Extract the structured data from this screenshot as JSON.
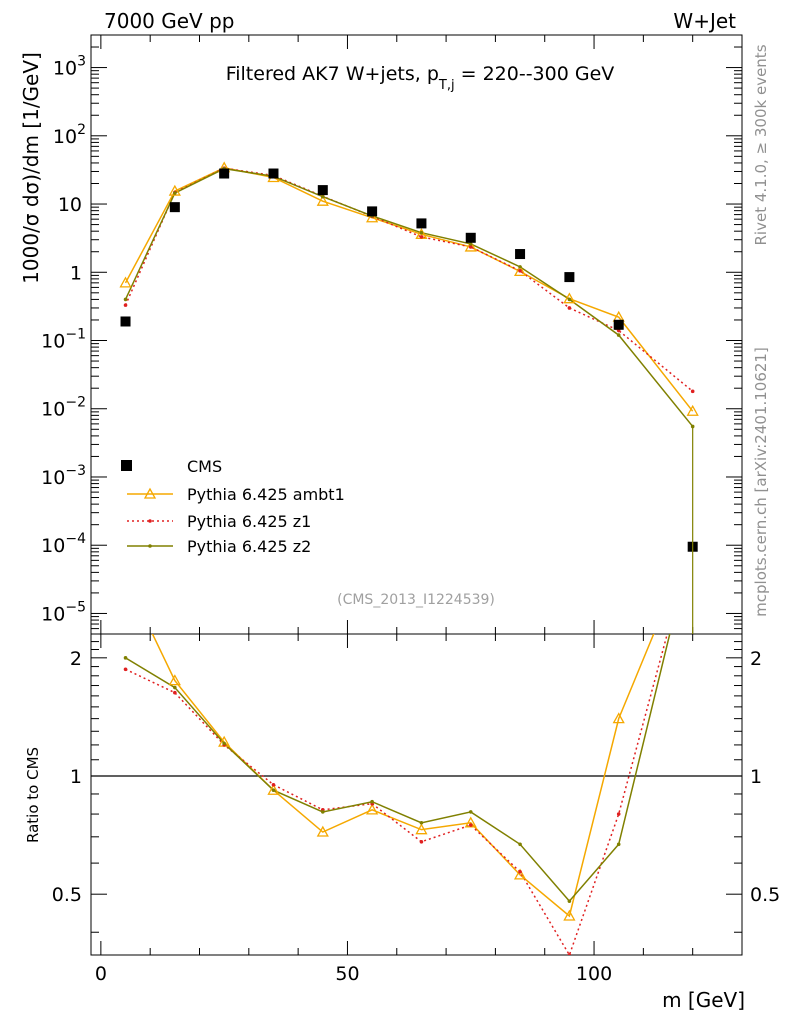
{
  "header": {
    "left": "7000 GeV pp",
    "right": "W+Jet"
  },
  "side_labels": {
    "rivet": "Rivet 4.1.0, ≥ 300k events",
    "site": "mcplots.cern.ch [arXiv:2401.10621]"
  },
  "chart_data": {
    "type": "line",
    "title_main": "Filtered AK7 W+jets, p",
    "title_sub": "T,j",
    "title_tail": " = 220--300 GeV",
    "analysis_tag": "(CMS_2013_I1224539)",
    "ylabel": "1000/σ  dσ)/dm [1/GeV]",
    "ratio_ylabel": "Ratio to CMS",
    "xlabel": "m [GeV]",
    "xlim": [
      -2,
      130
    ],
    "ylim": [
      5e-06,
      3000
    ],
    "yscale": "log",
    "ratio_ylim": [
      0.35,
      2.3
    ],
    "ratio_yscale": "log",
    "xticks": [
      0,
      50,
      100
    ],
    "xtick_labels": [
      "0",
      "50",
      "100"
    ],
    "yticks_main": [
      {
        "v": 1e-05,
        "base": "10",
        "exp": "−5"
      },
      {
        "v": 0.0001,
        "base": "10",
        "exp": "−4"
      },
      {
        "v": 0.001,
        "base": "10",
        "exp": "−3"
      },
      {
        "v": 0.01,
        "base": "10",
        "exp": "−2"
      },
      {
        "v": 0.1,
        "base": "10",
        "exp": "−1"
      },
      {
        "v": 1,
        "base": "1",
        "exp": ""
      },
      {
        "v": 10,
        "base": "10",
        "exp": ""
      },
      {
        "v": 100,
        "base": "10",
        "exp": "2"
      },
      {
        "v": 1000,
        "base": "10",
        "exp": "3"
      }
    ],
    "yticks_ratio": [
      {
        "v": 0.5,
        "label": "0.5"
      },
      {
        "v": 1,
        "label": "1"
      },
      {
        "v": 2,
        "label": "2"
      }
    ],
    "x": [
      5,
      15,
      25,
      35,
      45,
      55,
      65,
      75,
      85,
      95,
      105,
      120
    ],
    "cms": {
      "name": "CMS",
      "color": "#000000",
      "values": [
        0.19,
        9.0,
        28,
        28,
        16,
        7.8,
        5.2,
        3.2,
        1.85,
        0.85,
        0.17,
        9.5e-05
      ]
    },
    "series": [
      {
        "name": "Pythia 6.425 ambt1",
        "color": "#f5a800",
        "style": "solid",
        "marker": "triangle",
        "values": [
          0.7,
          15.5,
          34,
          24.5,
          11,
          6.3,
          3.6,
          2.35,
          1.03,
          0.41,
          0.22,
          0.0092
        ],
        "ratio": [
          3.2,
          1.75,
          1.22,
          0.92,
          0.72,
          0.82,
          0.73,
          0.76,
          0.56,
          0.44,
          1.4,
          4.0
        ]
      },
      {
        "name": "Pythia 6.425 z1",
        "color": "#e02020",
        "style": "dotted",
        "marker": "dot",
        "values": [
          0.33,
          14.8,
          33.5,
          26.2,
          13,
          6.6,
          3.3,
          2.35,
          1.05,
          0.3,
          0.14,
          0.018
        ],
        "ratio": [
          1.87,
          1.63,
          1.2,
          0.95,
          0.82,
          0.85,
          0.68,
          0.75,
          0.57,
          0.35,
          0.8,
          4.0
        ]
      },
      {
        "name": "Pythia 6.425 z2",
        "color": "#808000",
        "style": "solid",
        "marker": "dot",
        "values": [
          0.4,
          14.5,
          33,
          25.5,
          12.8,
          6.7,
          3.8,
          2.6,
          1.2,
          0.4,
          0.12,
          0.0055
        ],
        "ratio": [
          2.0,
          1.68,
          1.21,
          0.92,
          0.81,
          0.86,
          0.76,
          0.81,
          0.67,
          0.48,
          0.67,
          4.0
        ]
      }
    ]
  }
}
